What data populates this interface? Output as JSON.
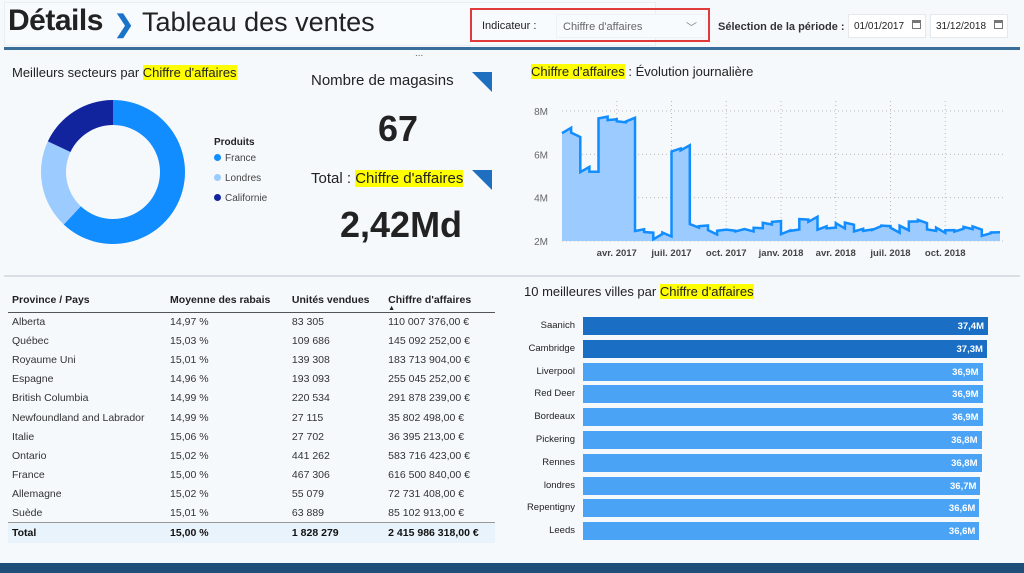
{
  "header": {
    "title": "Détails",
    "subtitle": "Tableau des ventes",
    "indicator_label": "Indicateur :",
    "indicator_value": "Chiffre d'affaires",
    "period_label": "Sélection de la période :",
    "date_start": "01/01/2017",
    "date_end": "31/12/2018",
    "more": "..."
  },
  "donut": {
    "title_prefix": "Meilleurs secteurs par ",
    "title_hl": "Chiffre d'affaires",
    "legend_title": "Produits",
    "items": [
      {
        "label": "France",
        "value": 62,
        "color": "#118dff"
      },
      {
        "label": "Londres",
        "value": 20,
        "color": "#9ccbff"
      },
      {
        "label": "Californie",
        "value": 18,
        "color": "#12239e"
      }
    ]
  },
  "cards": {
    "stores_label": "Nombre de magasins",
    "stores_value": "67",
    "total_prefix": "Total : ",
    "total_hl": "Chiffre d'affaires",
    "total_value": "2,42Md"
  },
  "line": {
    "title_hl": "Chiffre d'affaires",
    "title_suffix": " : Évolution journalière"
  },
  "chart_data": [
    {
      "type": "area",
      "title": "Chiffre d'affaires : Évolution journalière",
      "ylim": [
        2,
        8.5
      ],
      "yticks": [
        "2M",
        "4M",
        "6M",
        "8M"
      ],
      "ytick_values": [
        2,
        4,
        6,
        8
      ],
      "xticks": [
        "avr. 2017",
        "juil. 2017",
        "oct. 2017",
        "janv. 2018",
        "avr. 2018",
        "juil. 2018",
        "oct. 2018"
      ],
      "xtick_months": [
        3,
        6,
        9,
        12,
        15,
        18,
        21
      ],
      "x_months_range": [
        0,
        24
      ],
      "values": [
        7.1,
        6.9,
        5.3,
        5.2,
        7.7,
        7.6,
        7.5,
        7.6,
        2.5,
        2.4,
        2.2,
        2.3,
        6.2,
        6.3,
        2.7,
        2.7,
        2.4,
        2.5,
        2.5,
        2.5,
        2.5,
        2.6,
        2.8,
        2.9,
        2.4,
        2.5,
        3.0,
        3.0,
        2.6,
        2.6,
        2.7,
        2.8,
        2.5,
        2.5,
        2.6,
        2.7,
        2.5,
        2.6,
        2.9,
        2.9,
        2.5,
        2.5,
        2.5,
        2.5,
        2.6,
        2.6,
        2.3,
        2.4
      ]
    },
    {
      "type": "bar",
      "title": "10 meilleures villes par Chiffre d'affaires",
      "categories": [
        "Saanich",
        "Cambridge",
        "Liverpool",
        "Red Deer",
        "Bordeaux",
        "Pickering",
        "Rennes",
        "londres",
        "Repentigny",
        "Leeds"
      ],
      "values": [
        37.4,
        37.3,
        36.9,
        36.9,
        36.9,
        36.8,
        36.8,
        36.7,
        36.6,
        36.6
      ],
      "labels": [
        "37,4M",
        "37,3M",
        "36,9M",
        "36,9M",
        "36,9M",
        "36,8M",
        "36,8M",
        "36,7M",
        "36,6M",
        "36,6M"
      ]
    }
  ],
  "bars": {
    "title_prefix": "10 meilleures villes par ",
    "title_hl": "Chiffre d'affaires"
  },
  "table": {
    "headers": [
      "Province / Pays",
      "Moyenne des rabais",
      "Unités vendues",
      "Chiffre d'affaires"
    ],
    "sort_indicator": "▲",
    "rows": [
      [
        "Alberta",
        "14,97 %",
        "83 305",
        "110 007 376,00 €"
      ],
      [
        "Québec",
        "15,03 %",
        "109 686",
        "145 092 252,00 €"
      ],
      [
        "Royaume Uni",
        "15,01 %",
        "139 308",
        "183 713 904,00 €"
      ],
      [
        "Espagne",
        "14,96 %",
        "193 093",
        "255 045 252,00 €"
      ],
      [
        "British Columbia",
        "14,99 %",
        "220 534",
        "291 878 239,00 €"
      ],
      [
        "Newfoundland and Labrador",
        "14,99 %",
        "27 115",
        "35 802 498,00 €"
      ],
      [
        "Italie",
        "15,06 %",
        "27 702",
        "36 395 213,00 €"
      ],
      [
        "Ontario",
        "15,02 %",
        "441 262",
        "583 716 423,00 €"
      ],
      [
        "France",
        "15,00 %",
        "467 306",
        "616 500 840,00 €"
      ],
      [
        "Allemagne",
        "15,02 %",
        "55 079",
        "72 731 408,00 €"
      ],
      [
        "Suède",
        "15,01 %",
        "63 889",
        "85 102 913,00 €"
      ]
    ],
    "total": [
      "Total",
      "15,00 %",
      "1 828 279",
      "2 415 986 318,00 €"
    ]
  }
}
